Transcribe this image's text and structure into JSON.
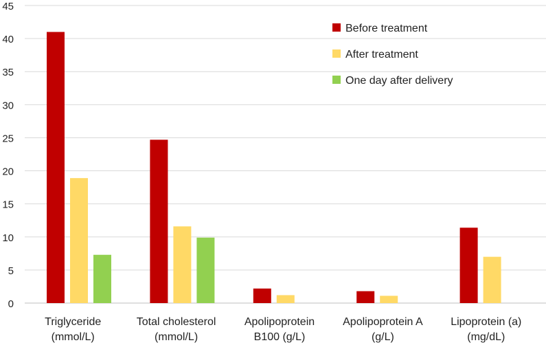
{
  "chart_data": {
    "type": "bar",
    "title": "",
    "xlabel": "",
    "ylabel": "",
    "ylim": [
      0,
      45
    ],
    "yticks": [
      0,
      5,
      10,
      15,
      20,
      25,
      30,
      35,
      40,
      45
    ],
    "grid": "horizontal",
    "legend_position": "top-right",
    "categories": [
      [
        "Triglyceride",
        "(mmol/L)"
      ],
      [
        "Total cholesterol",
        "(mmol/L)"
      ],
      [
        "Apolipoprotein",
        "B100 (g/L)"
      ],
      [
        "Apolipoprotein A",
        "(g/L)"
      ],
      [
        "Lipoprotein (a)",
        "(mg/dL)"
      ]
    ],
    "series": [
      {
        "name": "Before treatment",
        "color": "#c00000",
        "values": [
          41.0,
          24.7,
          2.2,
          1.8,
          11.4
        ]
      },
      {
        "name": "After treatment",
        "color": "#ffd966",
        "values": [
          18.9,
          11.6,
          1.2,
          1.1,
          7.0
        ]
      },
      {
        "name": "One day after delivery",
        "color": "#92d050",
        "values": [
          7.3,
          9.9,
          null,
          null,
          null
        ]
      }
    ]
  }
}
